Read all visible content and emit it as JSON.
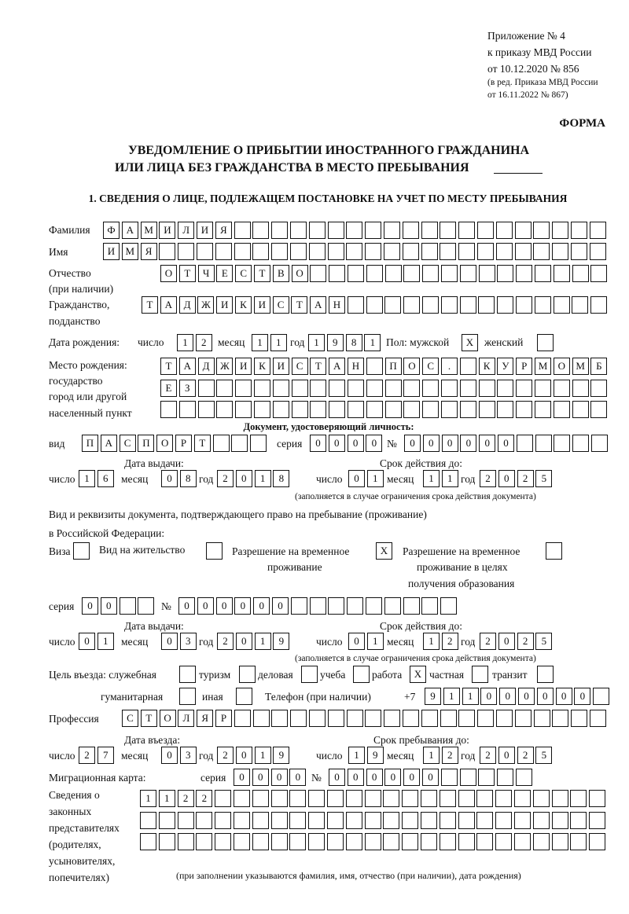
{
  "header": {
    "appendix": "Приложение № 4",
    "order": "к приказу МВД России",
    "order_date": "от 10.12.2020 № 856",
    "revision_1": "(в ред. Приказа МВД России",
    "revision_2": "от 16.11.2022 № 867)",
    "form_label": "ФОРМА",
    "title_1": "УВЕДОМЛЕНИЕ О ПРИБЫТИИ ИНОСТРАННОГО ГРАЖДАНИНА",
    "title_2": "ИЛИ ЛИЦА БЕЗ ГРАЖДАНСТВА В МЕСТО ПРЕБЫВАНИЯ",
    "section_1": "1. СВЕДЕНИЯ О ЛИЦЕ, ПОДЛЕЖАЩЕМ ПОСТАНОВКЕ НА УЧЕТ ПО МЕСТУ ПРЕБЫВАНИЯ"
  },
  "labels": {
    "surname": "Фамилия",
    "name": "Имя",
    "patronymic": "Отчество",
    "patronymic_note": "(при наличии)",
    "citizenship_1": "Гражданство,",
    "citizenship_2": "подданство",
    "birth_date": "Дата рождения:",
    "day": "число",
    "month": "месяц",
    "year": "год",
    "sex": "Пол: мужской",
    "female": "женский",
    "birthplace_1": "Место рождения:",
    "birthplace_2": "государство",
    "birthplace_3": "город или другой",
    "birthplace_4": "населенный пункт",
    "id_doc": "Документ, удостоверяющий личность:",
    "doc_type": "вид",
    "series": "серия",
    "number": "№",
    "issue_date": "Дата выдачи:",
    "valid_until": "Срок действия до:",
    "validity_note": "(заполняется в случае ограничения срока действия документа)",
    "stay_doc_1": "Вид и реквизиты документа, подтверждающего право на пребывание (проживание)",
    "stay_doc_2": "в Российской Федерации:",
    "visa": "Виза",
    "residence": "Вид на жительство",
    "temp_1": "Разрешение на временное",
    "temp_2": "проживание",
    "edu_1": "Разрешение на временное",
    "edu_2": "проживание в целях",
    "edu_3": "получения образования",
    "purpose": "Цель въезда: служебная",
    "tourism": "туризм",
    "business": "деловая",
    "study": "учеба",
    "work": "работа",
    "private": "частная",
    "transit": "транзит",
    "humanitarian": "гуманитарная",
    "other": "иная",
    "phone": "Телефон (при наличии)",
    "phone_prefix": "+7",
    "profession": "Профессия",
    "entry_date": "Дата въезда:",
    "stay_until": "Срок пребывания до:",
    "migration_card": "Миграционная карта:",
    "reps_1": "Сведения о",
    "reps_2": "законных",
    "reps_3": "представителях",
    "reps_4": "(родителях,",
    "reps_5": "усыновителях,",
    "reps_6": "попечителях)",
    "reps_note": "(при заполнении указываются фамилия, имя, отчество (при наличии), дата рождения)"
  },
  "person": {
    "surname": "ФАМИЛИЯ",
    "name": "ИМЯ",
    "patronymic": "ОТЧЕСТВО",
    "citizenship": "ТАДЖИКИСТАН",
    "birth_day": "12",
    "birth_month": "11",
    "birth_year": "1981",
    "male": "X",
    "female": "",
    "birthplace_1": "ТАДЖИКИСТАН ПОС. КУРМОМБ",
    "birthplace_2": "ЕЗ",
    "birthplace_3": ""
  },
  "id_document": {
    "type": "ПАСПОРТ",
    "series": "0000",
    "number": "000000",
    "issue_day": "16",
    "issue_month": "08",
    "issue_year": "2018",
    "valid_day": "01",
    "valid_month": "11",
    "valid_year": "2025"
  },
  "stay_document": {
    "visa": "",
    "residence": "",
    "temporary": "X",
    "education": "",
    "series": "00",
    "number": "000000",
    "issue_day": "01",
    "issue_month": "03",
    "issue_year": "2019",
    "valid_day": "01",
    "valid_month": "12",
    "valid_year": "2025"
  },
  "purpose": {
    "official": "",
    "tourism": "",
    "business": "",
    "study": "",
    "work": "X",
    "private": "",
    "transit": "",
    "humanitarian": "",
    "other": ""
  },
  "phone": "911000000",
  "profession": "СТОЛЯР",
  "entry": {
    "entry_day": "27",
    "entry_month": "03",
    "entry_year": "2019",
    "stay_day": "19",
    "stay_month": "12",
    "stay_year": "2025"
  },
  "migration_card": {
    "series": "0000",
    "number": "000000"
  },
  "representatives": {
    "line_1": "1122",
    "line_2": "",
    "line_3": ""
  }
}
